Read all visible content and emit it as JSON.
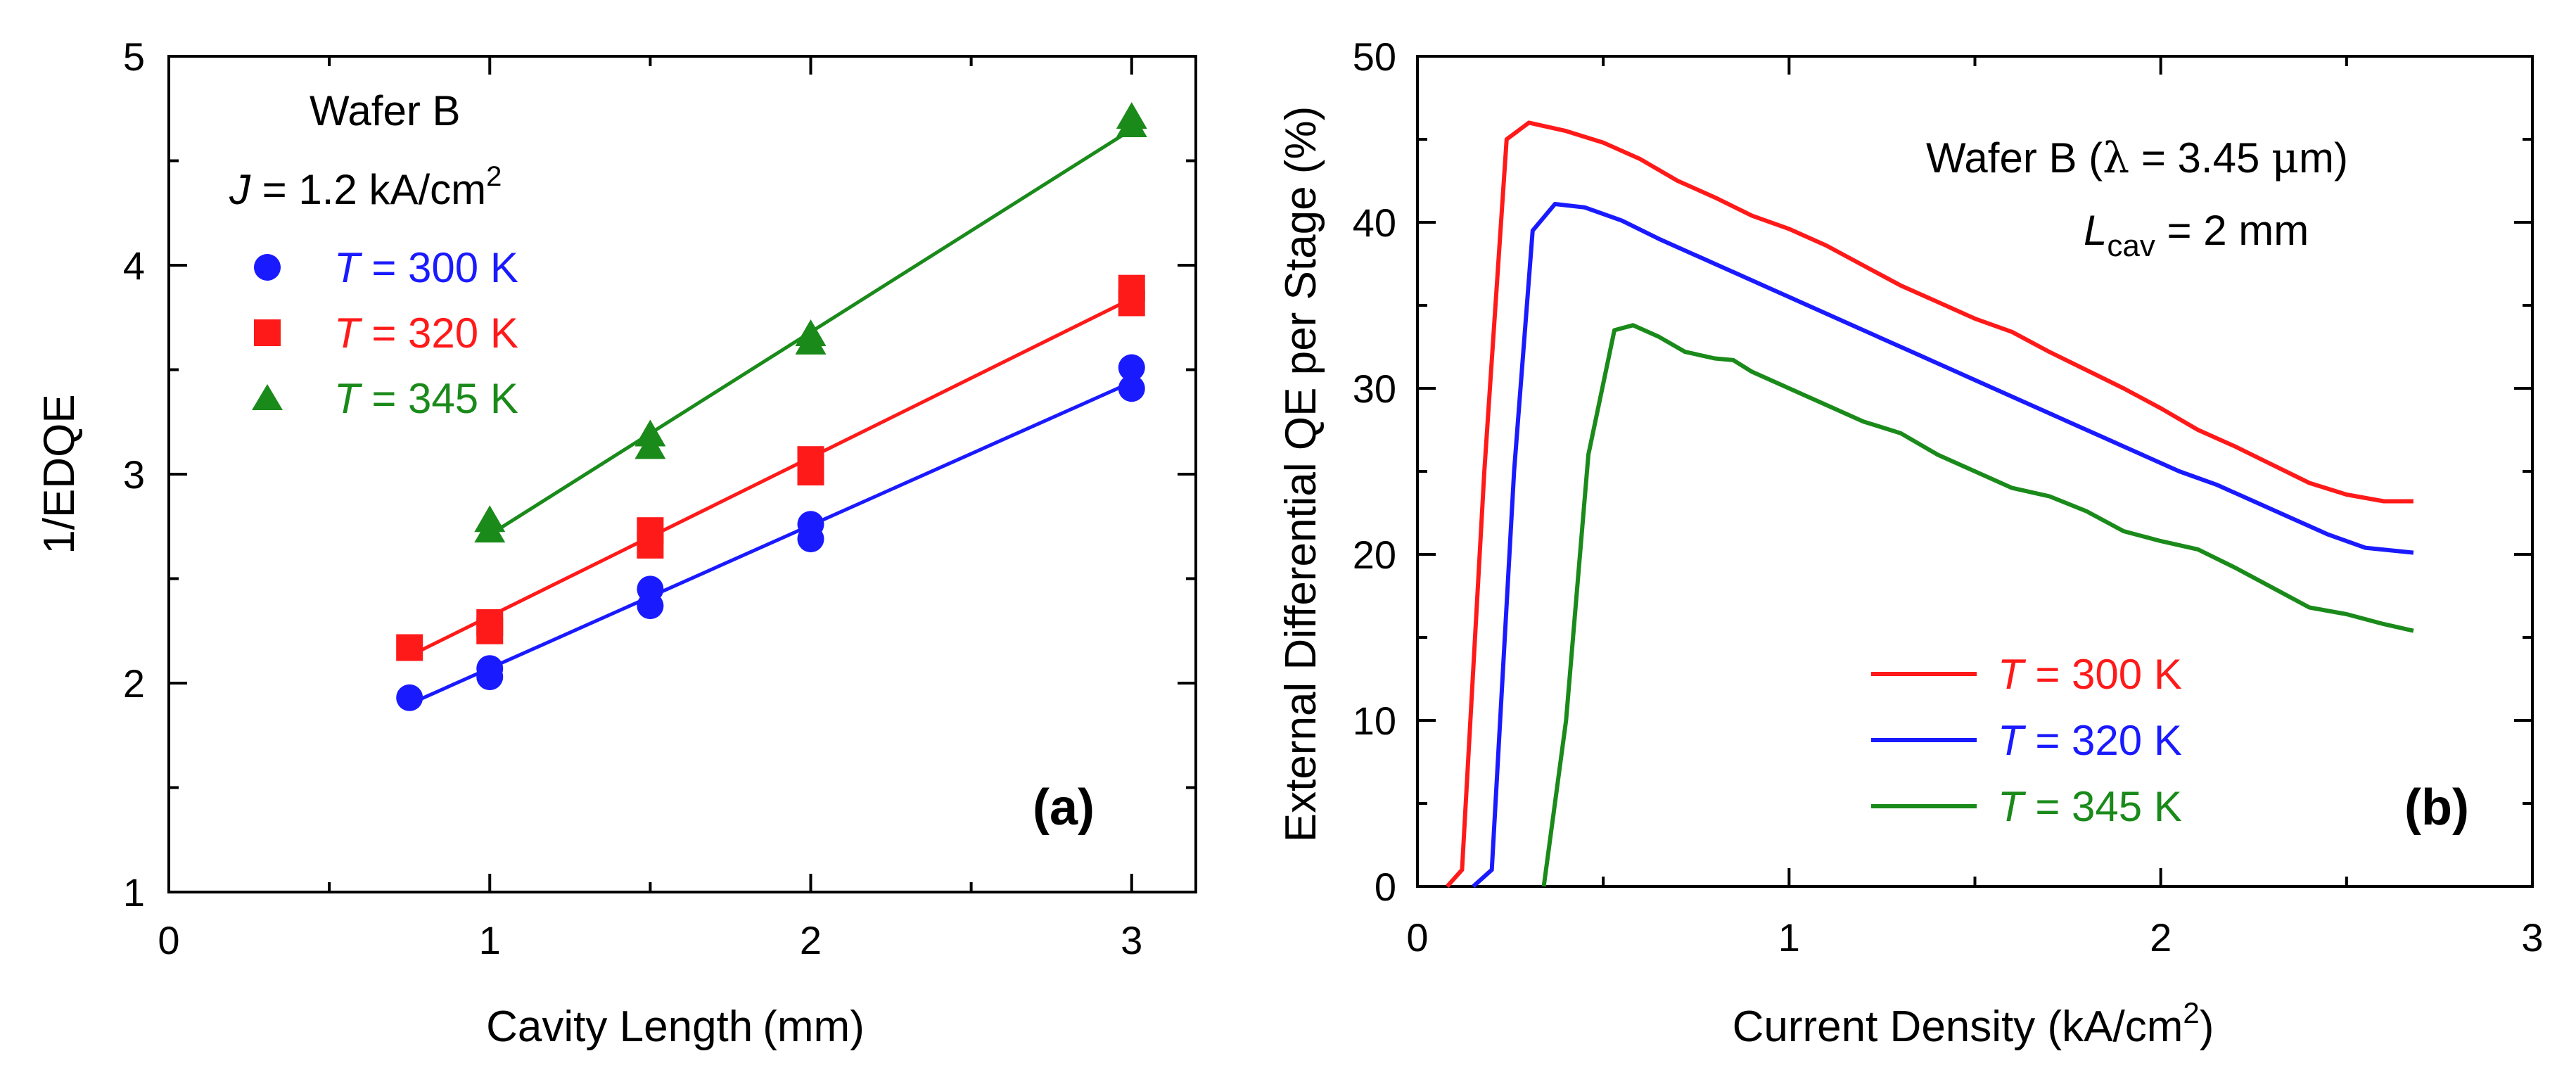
{
  "chart_data": [
    {
      "panel": "(a)",
      "type": "scatter",
      "xlabel": "Cavity Length",
      "xlabel_unit": "(mm)",
      "ylabel": "1/EDQE",
      "xlim": [
        0,
        3.2
      ],
      "ylim": [
        1,
        5
      ],
      "x_ticks": [
        "0",
        "1",
        "2",
        "3"
      ],
      "y_ticks": [
        "1",
        "2",
        "3",
        "4",
        "5"
      ],
      "grid": false,
      "legend_position": "top-left",
      "annotations": {
        "wafer": "Wafer B",
        "current_var": "J",
        "current_text": " = 1.2 kA/cm",
        "current_sup": "2"
      },
      "series": [
        {
          "name_var": "T",
          "name_text": " = 300 K",
          "color": "#1a1aff",
          "marker": "circle",
          "points": [
            [
              0.75,
              1.93
            ],
            [
              1.0,
              2.03
            ],
            [
              1.0,
              2.07
            ],
            [
              1.5,
              2.37
            ],
            [
              1.5,
              2.45
            ],
            [
              2.0,
              2.69
            ],
            [
              2.0,
              2.76
            ],
            [
              3.0,
              3.41
            ],
            [
              3.0,
              3.51
            ]
          ],
          "fit": [
            [
              0.75,
              1.9
            ],
            [
              3.0,
              3.44
            ]
          ]
        },
        {
          "name_var": "T",
          "name_text": " = 320 K",
          "color": "#ff1a1a",
          "marker": "square",
          "points": [
            [
              0.75,
              2.17
            ],
            [
              1.0,
              2.25
            ],
            [
              1.0,
              2.29
            ],
            [
              1.5,
              2.66
            ],
            [
              1.5,
              2.73
            ],
            [
              2.0,
              3.01
            ],
            [
              2.0,
              3.07
            ],
            [
              3.0,
              3.82
            ],
            [
              3.0,
              3.89
            ]
          ],
          "fit": [
            [
              0.75,
              2.13
            ],
            [
              3.0,
              3.84
            ]
          ]
        },
        {
          "name_var": "T",
          "name_text": " = 345 K",
          "color": "#1a8a1a",
          "marker": "triangle",
          "points": [
            [
              1.0,
              2.72
            ],
            [
              1.0,
              2.77
            ],
            [
              1.5,
              3.12
            ],
            [
              1.5,
              3.18
            ],
            [
              2.0,
              3.62
            ],
            [
              2.0,
              3.66
            ],
            [
              3.0,
              4.66
            ],
            [
              3.0,
              4.7
            ]
          ],
          "fit": [
            [
              1.0,
              2.71
            ],
            [
              3.0,
              4.65
            ]
          ]
        }
      ]
    },
    {
      "panel": "(b)",
      "type": "line",
      "xlabel": "Current Density (kA/cm",
      "xlabel_sup": "2",
      "xlabel_end": ")",
      "ylabel": "External Differential QE per Stage (%)",
      "xlim": [
        0,
        3
      ],
      "ylim": [
        0,
        50
      ],
      "x_ticks": [
        "0",
        "1",
        "2",
        "3"
      ],
      "y_ticks": [
        "0",
        "10",
        "20",
        "30",
        "40",
        "50"
      ],
      "grid": false,
      "legend_position": "bottom-left",
      "annotations": {
        "line1_pre": "Wafer B (",
        "line1_lambda": "λ",
        "line1_post": " = 3.45 ",
        "line1_mu": "μ",
        "line1_end": "m)",
        "line2_var": "L",
        "line2_sub": "cav",
        "line2_text": " = 2 mm"
      },
      "series": [
        {
          "name_var": "T",
          "name_text": " = 300 K",
          "color": "#ff1a1a",
          "points": [
            [
              0.08,
              0
            ],
            [
              0.12,
              1
            ],
            [
              0.18,
              25
            ],
            [
              0.24,
              45
            ],
            [
              0.3,
              46
            ],
            [
              0.4,
              45.5
            ],
            [
              0.5,
              44.8
            ],
            [
              0.6,
              43.8
            ],
            [
              0.7,
              42.5
            ],
            [
              0.8,
              41.5
            ],
            [
              0.9,
              40.4
            ],
            [
              1.0,
              39.6
            ],
            [
              1.1,
              38.6
            ],
            [
              1.2,
              37.4
            ],
            [
              1.3,
              36.2
            ],
            [
              1.4,
              35.2
            ],
            [
              1.5,
              34.2
            ],
            [
              1.6,
              33.4
            ],
            [
              1.7,
              32.2
            ],
            [
              1.8,
              31.1
            ],
            [
              1.9,
              30.0
            ],
            [
              2.0,
              28.8
            ],
            [
              2.1,
              27.5
            ],
            [
              2.2,
              26.5
            ],
            [
              2.3,
              25.4
            ],
            [
              2.4,
              24.3
            ],
            [
              2.5,
              23.6
            ],
            [
              2.6,
              23.2
            ],
            [
              2.68,
              23.2
            ]
          ]
        },
        {
          "name_var": "T",
          "name_text": " = 320 K",
          "color": "#1a1aff",
          "points": [
            [
              0.15,
              0
            ],
            [
              0.2,
              1
            ],
            [
              0.26,
              25
            ],
            [
              0.31,
              39.5
            ],
            [
              0.37,
              41.1
            ],
            [
              0.45,
              40.9
            ],
            [
              0.55,
              40.1
            ],
            [
              0.65,
              39.0
            ],
            [
              0.75,
              38.0
            ],
            [
              0.85,
              37.0
            ],
            [
              0.95,
              36.0
            ],
            [
              1.05,
              35.0
            ],
            [
              1.15,
              34.0
            ],
            [
              1.25,
              33.0
            ],
            [
              1.35,
              32.0
            ],
            [
              1.45,
              31.0
            ],
            [
              1.55,
              30.0
            ],
            [
              1.65,
              29.0
            ],
            [
              1.75,
              28.0
            ],
            [
              1.85,
              27.0
            ],
            [
              1.95,
              26.0
            ],
            [
              2.05,
              25.0
            ],
            [
              2.15,
              24.2
            ],
            [
              2.25,
              23.2
            ],
            [
              2.35,
              22.2
            ],
            [
              2.45,
              21.2
            ],
            [
              2.55,
              20.4
            ],
            [
              2.68,
              20.1
            ]
          ]
        },
        {
          "name_var": "T",
          "name_text": " = 345 K",
          "color": "#1a8a1a",
          "points": [
            [
              0.34,
              0
            ],
            [
              0.4,
              10
            ],
            [
              0.46,
              26
            ],
            [
              0.53,
              33.5
            ],
            [
              0.58,
              33.8
            ],
            [
              0.65,
              33.1
            ],
            [
              0.72,
              32.2
            ],
            [
              0.8,
              31.8
            ],
            [
              0.85,
              31.7
            ],
            [
              0.9,
              31.0
            ],
            [
              1.0,
              30.0
            ],
            [
              1.1,
              29.0
            ],
            [
              1.2,
              28.0
            ],
            [
              1.3,
              27.3
            ],
            [
              1.4,
              26.0
            ],
            [
              1.5,
              25.0
            ],
            [
              1.6,
              24.0
            ],
            [
              1.7,
              23.5
            ],
            [
              1.8,
              22.6
            ],
            [
              1.9,
              21.4
            ],
            [
              2.0,
              20.8
            ],
            [
              2.1,
              20.3
            ],
            [
              2.2,
              19.2
            ],
            [
              2.3,
              18.0
            ],
            [
              2.4,
              16.8
            ],
            [
              2.5,
              16.4
            ],
            [
              2.6,
              15.8
            ],
            [
              2.68,
              15.4
            ]
          ]
        }
      ]
    }
  ]
}
